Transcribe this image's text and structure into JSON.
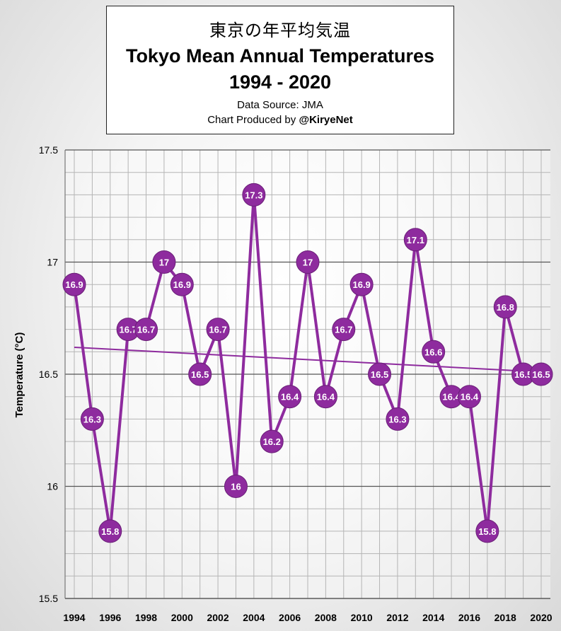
{
  "title_jp": "東京の年平均気温",
  "title_en": "Tokyo Mean Annual Temperatures",
  "title_years": "1994 - 2020",
  "data_source": "Data Source: JMA",
  "produced_by_prefix": "Chart Produced by ",
  "produced_by_handle": "@KiryeNet",
  "colors": {
    "series": "#8e2b9e",
    "trend": "#8e2b9e",
    "grid": "#7a7a7a",
    "label_text": "#ffffff"
  },
  "chart_data": {
    "type": "line",
    "ylabel": "Temperature (°C)",
    "xlabel": "",
    "ylim": [
      15.5,
      17.5
    ],
    "y_ticks": [
      "15.5",
      "16",
      "16.5",
      "17",
      "17.5"
    ],
    "x_tick_labels": [
      "1994",
      "1996",
      "1998",
      "2000",
      "2002",
      "2004",
      "2006",
      "2008",
      "2010",
      "2012",
      "2014",
      "2016",
      "2018",
      "2020"
    ],
    "grid": true,
    "x": [
      1994,
      1995,
      1996,
      1997,
      1998,
      1999,
      2000,
      2001,
      2002,
      2003,
      2004,
      2005,
      2006,
      2007,
      2008,
      2009,
      2010,
      2011,
      2012,
      2013,
      2014,
      2015,
      2016,
      2017,
      2018,
      2019,
      2020
    ],
    "values": [
      16.9,
      16.3,
      15.8,
      16.7,
      16.7,
      17.0,
      16.9,
      16.5,
      16.7,
      16.0,
      17.3,
      16.2,
      16.4,
      17.0,
      16.4,
      16.7,
      16.9,
      16.5,
      16.3,
      17.1,
      16.6,
      16.4,
      16.4,
      15.8,
      16.8,
      16.5,
      16.5
    ],
    "data_labels": [
      "16.9",
      "16.3",
      "15.8",
      "16.7",
      "16.7",
      "17",
      "16.9",
      "16.5",
      "16.7",
      "16",
      "17.3",
      "16.2",
      "16.4",
      "17",
      "16.4",
      "16.7",
      "16.9",
      "16.5",
      "16.3",
      "17.1",
      "16.6",
      "16.4",
      "16.4",
      "15.8",
      "16.8",
      "16.5",
      "16.5"
    ],
    "trendline": {
      "start": 16.62,
      "end": 16.51
    }
  }
}
